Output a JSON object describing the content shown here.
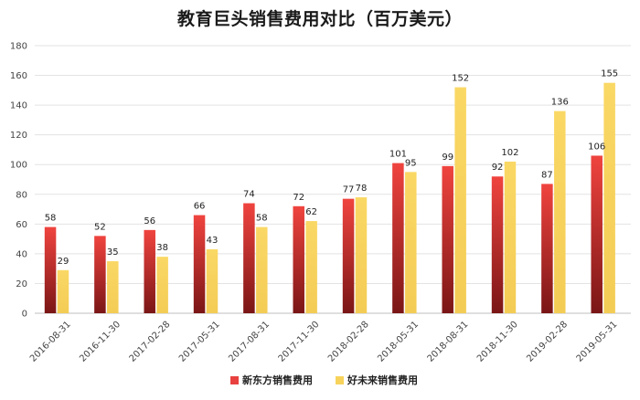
{
  "chart_data": {
    "type": "bar",
    "title": "教育巨头销售费用对比（百万美元）",
    "xlabel": "",
    "ylabel": "",
    "ylim": [
      0,
      180
    ],
    "yticks": [
      0,
      20,
      40,
      60,
      80,
      100,
      120,
      140,
      160,
      180
    ],
    "grid": true,
    "legend_position": "bottom",
    "categories": [
      "2016-08-31",
      "2016-11-30",
      "2017-02-28",
      "2017-05-31",
      "2017-08-31",
      "2017-11-30",
      "2018-02-28",
      "2018-05-31",
      "2018-08-31",
      "2018-11-30",
      "2019-02-28",
      "2019-05-31"
    ],
    "series": [
      {
        "name": "新东方销售费用",
        "color": "#e8413f",
        "values": [
          58,
          52,
          56,
          66,
          74,
          72,
          77,
          101,
          99,
          92,
          87,
          106
        ]
      },
      {
        "name": "好未来销售费用",
        "color": "#f7d35c",
        "values": [
          29,
          35,
          38,
          43,
          58,
          62,
          78,
          95,
          152,
          102,
          136,
          155
        ]
      }
    ]
  }
}
